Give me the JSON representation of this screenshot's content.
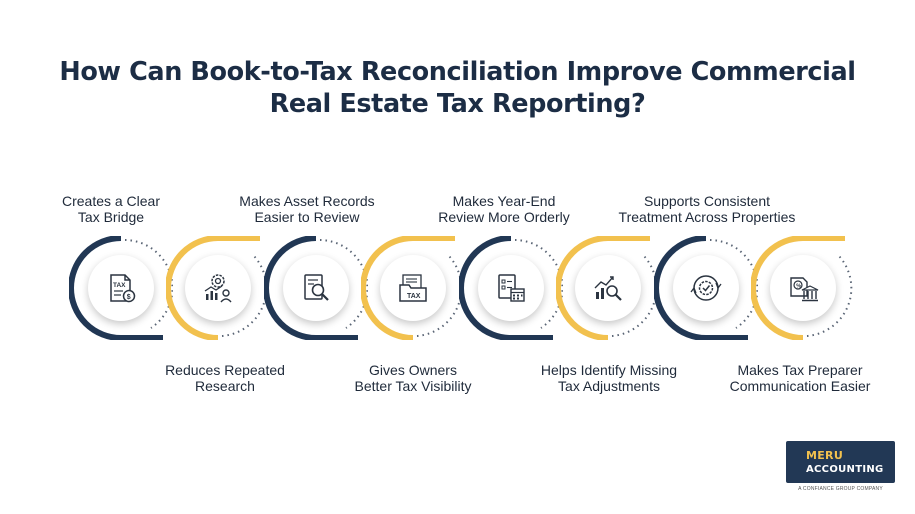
{
  "title": {
    "line1": "How Can Book-to-Tax Reconciliation Improve Commercial",
    "line2": "Real Estate Tax Reporting?"
  },
  "steps": [
    {
      "line1": "Creates a Clear",
      "line2": "Tax Bridge",
      "icon": "tax-document-icon",
      "color": "#213754"
    },
    {
      "line1": "Reduces Repeated",
      "line2": "Research",
      "icon": "analytics-gear-icon",
      "color": "#f2c14e"
    },
    {
      "line1": "Makes Asset Records",
      "line2": "Easier to Review",
      "icon": "document-search-icon",
      "color": "#213754"
    },
    {
      "line1": "Gives Owners",
      "line2": "Better Tax Visibility",
      "icon": "tax-folder-icon",
      "color": "#f2c14e"
    },
    {
      "line1": "Makes Year-End",
      "line2": "Review More Orderly",
      "icon": "checklist-calendar-icon",
      "color": "#213754"
    },
    {
      "line1": "Helps Identify Missing",
      "line2": "Tax Adjustments",
      "icon": "chart-magnifier-icon",
      "color": "#f2c14e"
    },
    {
      "line1": "Supports Consistent",
      "line2": "Treatment Across Properties",
      "icon": "cycle-check-icon",
      "color": "#213754"
    },
    {
      "line1": "Makes Tax Preparer",
      "line2": "Communication Easier",
      "icon": "tax-building-icon",
      "color": "#f2c14e"
    }
  ],
  "logo": {
    "line1": "MERU",
    "line2": "ACCOUNTING",
    "tagline": "A CONFIANCE GROUP COMPANY"
  }
}
